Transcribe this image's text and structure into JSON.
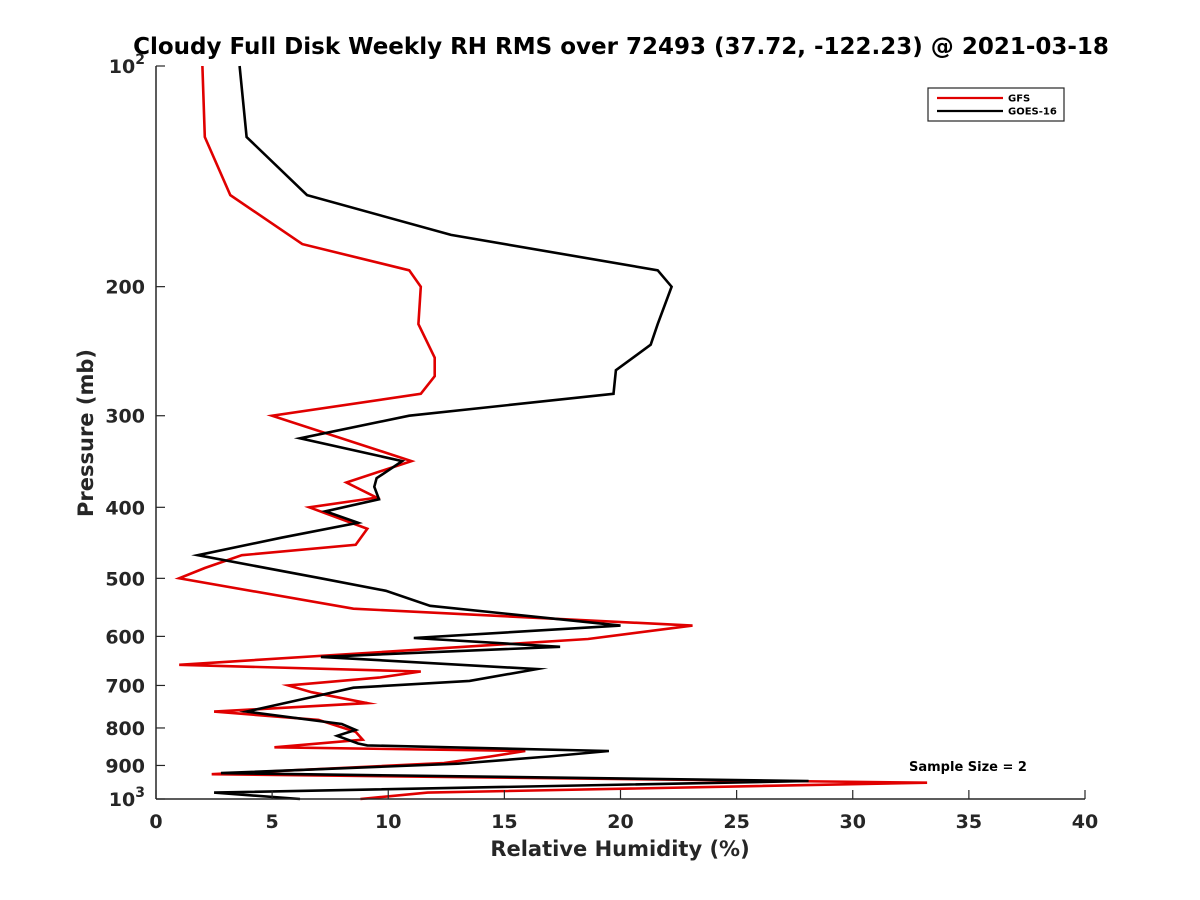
{
  "chart_data": {
    "type": "line",
    "title": "Cloudy Full Disk Weekly RH RMS over 72493 (37.72, -122.23) @ 2021-03-18",
    "xlabel": "Relative Humidity (%)",
    "ylabel": "Pressure (mb)",
    "xlim": [
      0,
      40
    ],
    "ylim": [
      100,
      1000
    ],
    "y_scale": "log",
    "y_reversed": true,
    "x_ticks": [
      0,
      5,
      10,
      15,
      20,
      25,
      30,
      35,
      40
    ],
    "x_tick_labels": [
      "0",
      "5",
      "10",
      "15",
      "20",
      "25",
      "30",
      "35",
      "40"
    ],
    "y_ticks": [
      100,
      200,
      300,
      400,
      500,
      600,
      700,
      800,
      900,
      1000
    ],
    "y_tick_labels": [
      {
        "base": "10",
        "exp": "2"
      },
      {
        "base": "200",
        "exp": ""
      },
      {
        "base": "300",
        "exp": ""
      },
      {
        "base": "400",
        "exp": ""
      },
      {
        "base": "500",
        "exp": ""
      },
      {
        "base": "600",
        "exp": ""
      },
      {
        "base": "700",
        "exp": ""
      },
      {
        "base": "800",
        "exp": ""
      },
      {
        "base": "900",
        "exp": ""
      },
      {
        "base": "10",
        "exp": "3"
      }
    ],
    "grid": false,
    "legend_position": "top-right",
    "annotation": "Sample Size = 2",
    "series": [
      {
        "name": "GFS",
        "color": "#e00000",
        "points": [
          [
            2.0,
            100
          ],
          [
            2.1,
            125
          ],
          [
            3.2,
            150
          ],
          [
            6.3,
            175
          ],
          [
            10.9,
            190
          ],
          [
            11.4,
            200
          ],
          [
            11.3,
            225
          ],
          [
            12.0,
            250
          ],
          [
            12.0,
            265
          ],
          [
            11.4,
            280
          ],
          [
            5.0,
            300
          ],
          [
            11.0,
            346
          ],
          [
            8.2,
            370
          ],
          [
            9.5,
            388
          ],
          [
            6.6,
            400
          ],
          [
            9.1,
            428
          ],
          [
            8.6,
            450
          ],
          [
            3.7,
            465
          ],
          [
            2.1,
            484
          ],
          [
            1.0,
            500
          ],
          [
            8.5,
            550
          ],
          [
            23.1,
            580
          ],
          [
            18.6,
            605
          ],
          [
            1.0,
            656
          ],
          [
            11.4,
            670
          ],
          [
            9.6,
            683
          ],
          [
            5.7,
            700
          ],
          [
            6.7,
            715
          ],
          [
            9.1,
            740
          ],
          [
            2.5,
            760
          ],
          [
            7.0,
            780
          ],
          [
            8.6,
            810
          ],
          [
            8.9,
            830
          ],
          [
            5.1,
            850
          ],
          [
            15.9,
            860
          ],
          [
            14.4,
            875
          ],
          [
            12.4,
            893
          ],
          [
            2.4,
            925
          ],
          [
            33.2,
            950
          ],
          [
            11.7,
            980
          ],
          [
            8.8,
            1000
          ]
        ]
      },
      {
        "name": "GOES-16",
        "color": "#000000",
        "points": [
          [
            3.6,
            100
          ],
          [
            3.9,
            125
          ],
          [
            6.5,
            150
          ],
          [
            12.7,
            170
          ],
          [
            21.6,
            190
          ],
          [
            22.2,
            200
          ],
          [
            21.6,
            225
          ],
          [
            21.3,
            240
          ],
          [
            19.8,
            260
          ],
          [
            19.7,
            280
          ],
          [
            10.9,
            300
          ],
          [
            6.2,
            322
          ],
          [
            10.6,
            346
          ],
          [
            9.5,
            365
          ],
          [
            9.4,
            375
          ],
          [
            9.6,
            390
          ],
          [
            7.3,
            405
          ],
          [
            8.7,
            420
          ],
          [
            5.4,
            440
          ],
          [
            1.8,
            465
          ],
          [
            7.1,
            500
          ],
          [
            9.9,
            520
          ],
          [
            11.8,
            545
          ],
          [
            20.0,
            580
          ],
          [
            11.1,
            603
          ],
          [
            17.4,
            620
          ],
          [
            7.1,
            640
          ],
          [
            16.4,
            665
          ],
          [
            13.5,
            690
          ],
          [
            8.5,
            705
          ],
          [
            6.8,
            725
          ],
          [
            3.9,
            760
          ],
          [
            8.0,
            790
          ],
          [
            8.6,
            805
          ],
          [
            7.8,
            820
          ],
          [
            8.7,
            840
          ],
          [
            9.1,
            845
          ],
          [
            19.5,
            860
          ],
          [
            16.9,
            875
          ],
          [
            13.0,
            895
          ],
          [
            2.8,
            922
          ],
          [
            28.1,
            945
          ],
          [
            2.5,
            980
          ],
          [
            6.2,
            1000
          ]
        ]
      }
    ]
  }
}
